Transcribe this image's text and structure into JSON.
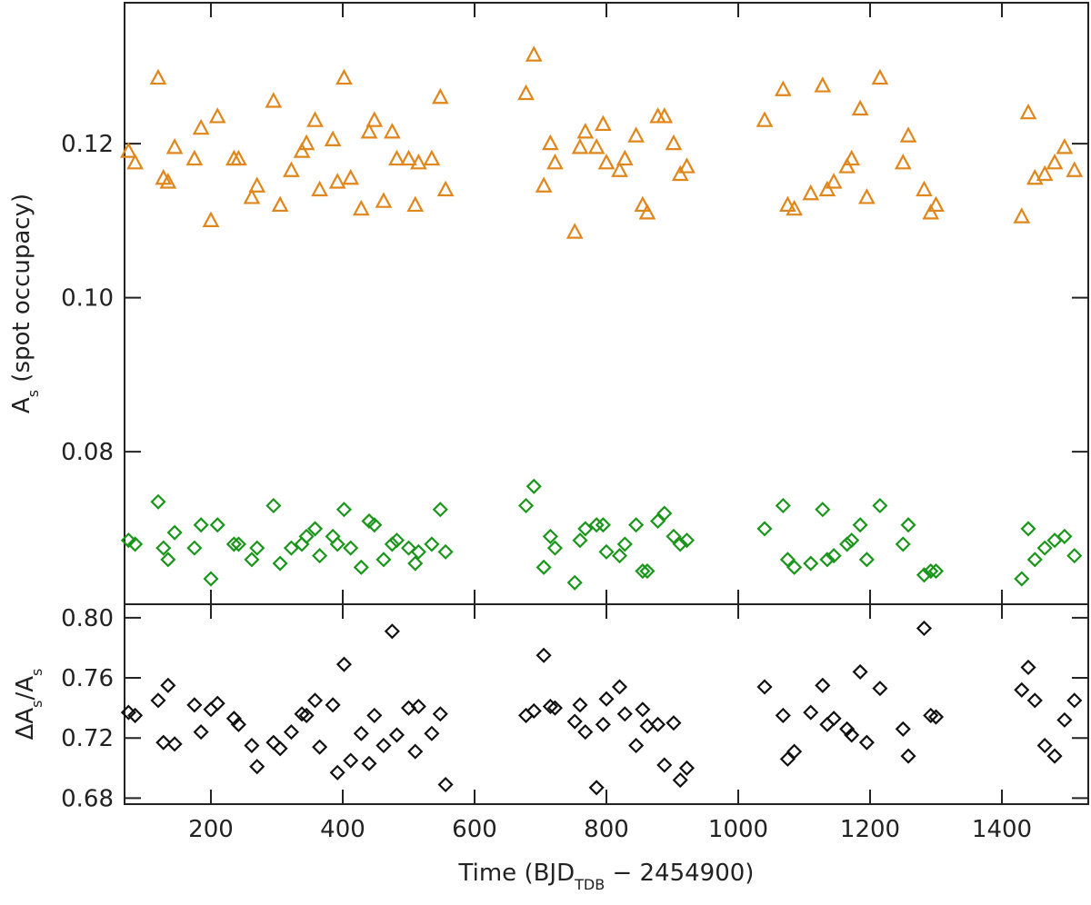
{
  "chart_data": [
    {
      "type": "scatter",
      "ylabel": [
        {
          "text": "A",
          "sub": false
        },
        {
          "text": "s",
          "sub": true
        },
        {
          "text": " (spot occupacy)",
          "sub": false
        }
      ],
      "xlim": [
        69,
        1531
      ],
      "xticks": [
        200,
        400,
        600,
        800,
        1000,
        1200,
        1400
      ],
      "ylim": [
        0.0602,
        0.1383
      ],
      "yticks": [
        {
          "value": 0.08,
          "label": "0.08"
        },
        {
          "value": 0.1,
          "label": "0.10"
        },
        {
          "value": 0.12,
          "label": "0.12"
        }
      ],
      "x": [
        75,
        85,
        120,
        128,
        135,
        145,
        175,
        185,
        200,
        210,
        235,
        242,
        262,
        270,
        295,
        305,
        322,
        338,
        345,
        358,
        365,
        385,
        392,
        402,
        412,
        428,
        440,
        448,
        462,
        475,
        482,
        500,
        510,
        515,
        535,
        548,
        556,
        678,
        690,
        705,
        715,
        722,
        752,
        760,
        768,
        785,
        795,
        800,
        820,
        828,
        845,
        855,
        862,
        878,
        888,
        902,
        912,
        922,
        1040,
        1068,
        1075,
        1085,
        1110,
        1128,
        1135,
        1145,
        1165,
        1172,
        1185,
        1195,
        1215,
        1250,
        1258,
        1282,
        1292,
        1300,
        1430,
        1440,
        1450,
        1465,
        1480,
        1495,
        1510
      ],
      "series": [
        {
          "marker": "triangle",
          "color": "#e0861a",
          "values": [
            0.119,
            0.1175,
            0.1285,
            0.1155,
            0.115,
            0.1195,
            0.118,
            0.122,
            0.11,
            0.1235,
            0.118,
            0.118,
            0.113,
            0.1145,
            0.1255,
            0.112,
            0.1165,
            0.119,
            0.12,
            0.123,
            0.114,
            0.1205,
            0.115,
            0.1285,
            0.1155,
            0.1115,
            0.1215,
            0.123,
            0.1125,
            0.1215,
            0.118,
            0.118,
            0.112,
            0.1175,
            0.118,
            0.126,
            0.114,
            0.1265,
            0.1315,
            0.1145,
            0.12,
            0.1175,
            0.1085,
            0.1195,
            0.1215,
            0.1195,
            0.1225,
            0.1175,
            0.1165,
            0.118,
            0.121,
            0.112,
            0.111,
            0.1235,
            0.1235,
            0.12,
            0.116,
            0.117,
            0.123,
            0.127,
            0.112,
            0.1115,
            0.1135,
            0.1275,
            0.114,
            0.115,
            0.117,
            0.118,
            0.1245,
            0.113,
            0.1285,
            0.1175,
            0.121,
            0.114,
            0.111,
            0.112,
            0.1105,
            0.124,
            0.1155,
            0.116,
            0.1175,
            0.1195,
            0.1165
          ]
        },
        {
          "marker": "diamond",
          "color": "#1a961a",
          "values": [
            0.0685,
            0.068,
            0.0735,
            0.0675,
            0.066,
            0.0695,
            0.0675,
            0.0705,
            0.0635,
            0.0705,
            0.068,
            0.068,
            0.066,
            0.0675,
            0.073,
            0.0655,
            0.0675,
            0.068,
            0.069,
            0.07,
            0.0665,
            0.069,
            0.068,
            0.0725,
            0.0675,
            0.065,
            0.071,
            0.0705,
            0.066,
            0.068,
            0.0685,
            0.0675,
            0.0655,
            0.067,
            0.068,
            0.0725,
            0.067,
            0.073,
            0.0755,
            0.065,
            0.069,
            0.0675,
            0.063,
            0.0685,
            0.07,
            0.0705,
            0.0705,
            0.067,
            0.0665,
            0.068,
            0.0705,
            0.0645,
            0.0645,
            0.071,
            0.072,
            0.069,
            0.068,
            0.0685,
            0.07,
            0.073,
            0.066,
            0.065,
            0.0655,
            0.0725,
            0.066,
            0.0665,
            0.068,
            0.0685,
            0.0705,
            0.066,
            0.073,
            0.068,
            0.0705,
            0.064,
            0.0645,
            0.0645,
            0.0635,
            0.07,
            0.066,
            0.0675,
            0.0685,
            0.069,
            0.0665
          ]
        }
      ]
    },
    {
      "type": "scatter",
      "ylabel": [
        {
          "text": "ΔA",
          "sub": false
        },
        {
          "text": "s",
          "sub": true
        },
        {
          "text": "/A",
          "sub": false
        },
        {
          "text": "s",
          "sub": true
        }
      ],
      "xlabel": [
        {
          "text": "Time (BJD",
          "sub": false
        },
        {
          "text": "TDB",
          "sub": true
        },
        {
          "text": " − 2454900)",
          "sub": false
        }
      ],
      "xlim": [
        69,
        1531
      ],
      "xticks": [
        200,
        400,
        600,
        800,
        1000,
        1200,
        1400
      ],
      "ylim": [
        0.676,
        0.809
      ],
      "yticks": [
        0.68,
        0.72,
        0.76,
        {
          "value": 0.8,
          "label": "0.80"
        }
      ],
      "x": [
        75,
        85,
        120,
        128,
        135,
        145,
        175,
        185,
        200,
        210,
        235,
        242,
        262,
        270,
        295,
        305,
        322,
        338,
        345,
        358,
        365,
        385,
        392,
        402,
        412,
        428,
        440,
        448,
        462,
        475,
        482,
        500,
        510,
        515,
        535,
        548,
        556,
        678,
        690,
        705,
        715,
        722,
        752,
        760,
        768,
        785,
        795,
        800,
        820,
        828,
        845,
        855,
        862,
        878,
        888,
        902,
        912,
        922,
        1040,
        1068,
        1075,
        1085,
        1110,
        1128,
        1135,
        1145,
        1165,
        1172,
        1185,
        1195,
        1215,
        1250,
        1258,
        1282,
        1292,
        1300,
        1430,
        1440,
        1450,
        1465,
        1480,
        1495,
        1510
      ],
      "series": [
        {
          "marker": "diamond",
          "color": "#111111",
          "values": [
            0.737,
            0.735,
            0.745,
            0.717,
            0.755,
            0.716,
            0.742,
            0.724,
            0.739,
            0.743,
            0.733,
            0.729,
            0.715,
            0.701,
            0.717,
            0.713,
            0.724,
            0.736,
            0.735,
            0.745,
            0.714,
            0.742,
            0.697,
            0.769,
            0.705,
            0.723,
            0.703,
            0.735,
            0.715,
            0.791,
            0.722,
            0.74,
            0.711,
            0.741,
            0.723,
            0.736,
            0.689,
            0.735,
            0.738,
            0.775,
            0.741,
            0.74,
            0.731,
            0.742,
            0.724,
            0.687,
            0.729,
            0.746,
            0.754,
            0.736,
            0.715,
            0.739,
            0.728,
            0.729,
            0.702,
            0.73,
            0.692,
            0.7,
            0.754,
            0.735,
            0.706,
            0.711,
            0.737,
            0.755,
            0.729,
            0.733,
            0.726,
            0.722,
            0.764,
            0.717,
            0.753,
            0.726,
            0.708,
            0.793,
            0.735,
            0.734,
            0.752,
            0.767,
            0.745,
            0.715,
            0.708,
            0.732,
            0.745
          ]
        }
      ]
    }
  ]
}
